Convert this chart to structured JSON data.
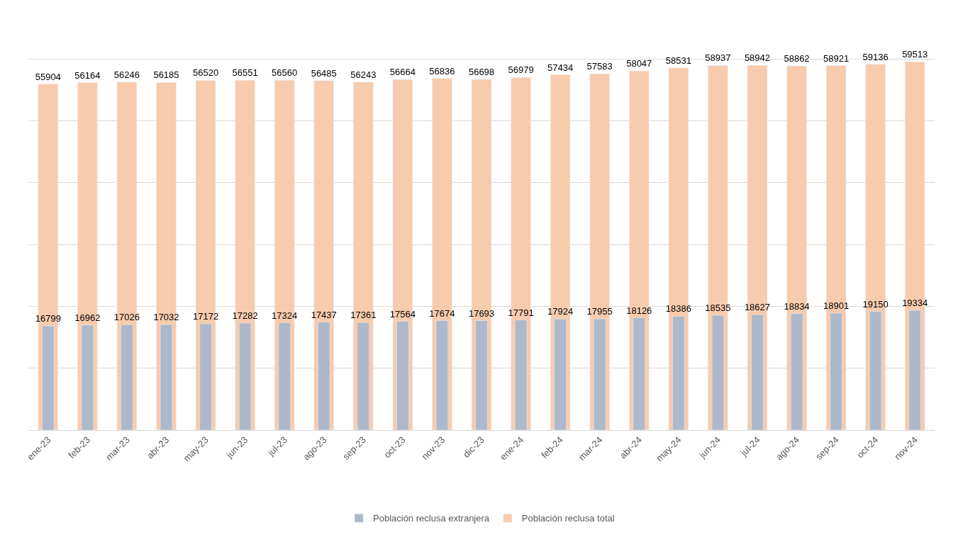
{
  "chart_data": {
    "type": "bar",
    "categories": [
      "ene-23",
      "feb-23",
      "mar-23",
      "abr-23",
      "may-23",
      "jun-23",
      "jul-23",
      "ago-23",
      "sep-23",
      "oct-23",
      "nov-23",
      "dic-23",
      "ene-24",
      "feb-24",
      "mar-24",
      "abr-24",
      "may-24",
      "jun-24",
      "jul-24",
      "ago-24",
      "sep-24",
      "oct-24",
      "nov-24"
    ],
    "series": [
      {
        "name": "Población reclusa extranjera",
        "color": "#adb9ca",
        "values": [
          16799,
          16962,
          17026,
          17032,
          17172,
          17282,
          17324,
          17437,
          17361,
          17564,
          17674,
          17693,
          17791,
          17924,
          17955,
          18126,
          18386,
          18535,
          18627,
          18834,
          18901,
          19150,
          19334
        ]
      },
      {
        "name": "Población reclusa total",
        "color": "#f8cbad",
        "values": [
          55904,
          56164,
          56246,
          56185,
          56520,
          56551,
          56560,
          56485,
          56243,
          56664,
          56836,
          56698,
          56979,
          57434,
          57583,
          58047,
          58531,
          58937,
          58942,
          58862,
          58921,
          59136,
          59513
        ]
      }
    ],
    "data_labels": true,
    "grid": "y",
    "legend": "bottom",
    "tick_labels": "x"
  }
}
